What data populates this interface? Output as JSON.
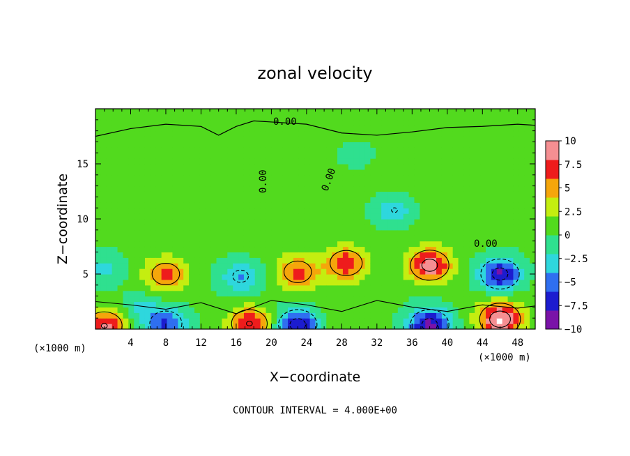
{
  "chart_data": {
    "type": "heatmap",
    "title": "zonal velocity",
    "xlabel": "X−coordinate",
    "ylabel": "Z−coordinate",
    "x_unit_left": "(×1000 m)",
    "x_unit_right": "(×1000 m)",
    "xlim": [
      0,
      50
    ],
    "ylim": [
      0,
      20
    ],
    "x_ticks": [
      4,
      8,
      12,
      16,
      20,
      24,
      28,
      32,
      36,
      40,
      44,
      48
    ],
    "x_tick_labels": [
      "4",
      "8",
      "12",
      "16",
      "20",
      "24",
      "28",
      "32",
      "36",
      "40",
      "44",
      "48"
    ],
    "y_ticks": [
      5,
      10,
      15
    ],
    "y_tick_labels": [
      "5",
      "10",
      "15"
    ],
    "colorbar": {
      "ticks": [
        10,
        7.5,
        5,
        2.5,
        0,
        -2.5,
        -5,
        -7.5,
        -10
      ],
      "tick_labels": [
        "10",
        "7.5",
        "5",
        "2.5",
        "0",
        "−2.5",
        "−5",
        "−7.5",
        "−10"
      ],
      "range": [
        -10,
        10
      ],
      "colors": [
        "#7a13a8",
        "#1c1ccf",
        "#2f6ff0",
        "#2ed7dd",
        "#2fe08f",
        "#52da1e",
        "#c4ee10",
        "#f5a60b",
        "#ee1c1c",
        "#f58f92"
      ]
    },
    "contour_label": "0.00",
    "contour_interval_text": "CONTOUR INTERVAL = 4.000E+00",
    "features": [
      {
        "x": 8,
        "z": 5.0,
        "value": 6
      },
      {
        "x": 16.5,
        "z": 4.8,
        "value": -4.5
      },
      {
        "x": 23,
        "z": 5.2,
        "value": 6
      },
      {
        "x": 28.5,
        "z": 6.0,
        "value": 7
      },
      {
        "x": 38,
        "z": 5.8,
        "value": 9
      },
      {
        "x": 34,
        "z": 10.8,
        "value": -4
      },
      {
        "x": 46,
        "z": 5.0,
        "value": -9
      },
      {
        "x": 1,
        "z": 5.5,
        "value": -3
      },
      {
        "x": 1,
        "z": 0.3,
        "value": 8
      },
      {
        "x": 8,
        "z": 0.5,
        "value": -7
      },
      {
        "x": 17.5,
        "z": 0.5,
        "value": 8
      },
      {
        "x": 23,
        "z": 0.4,
        "value": -9
      },
      {
        "x": 38,
        "z": 0.4,
        "value": -9
      },
      {
        "x": 46,
        "z": 0.9,
        "value": 10
      },
      {
        "x": 5,
        "z": 2.0,
        "value": -3
      },
      {
        "x": 44,
        "z": 11.5,
        "value": 1.5
      },
      {
        "x": 20,
        "z": 14.0,
        "value": 1.0
      },
      {
        "x": 30,
        "z": 16.0,
        "value": -1.0
      }
    ]
  }
}
